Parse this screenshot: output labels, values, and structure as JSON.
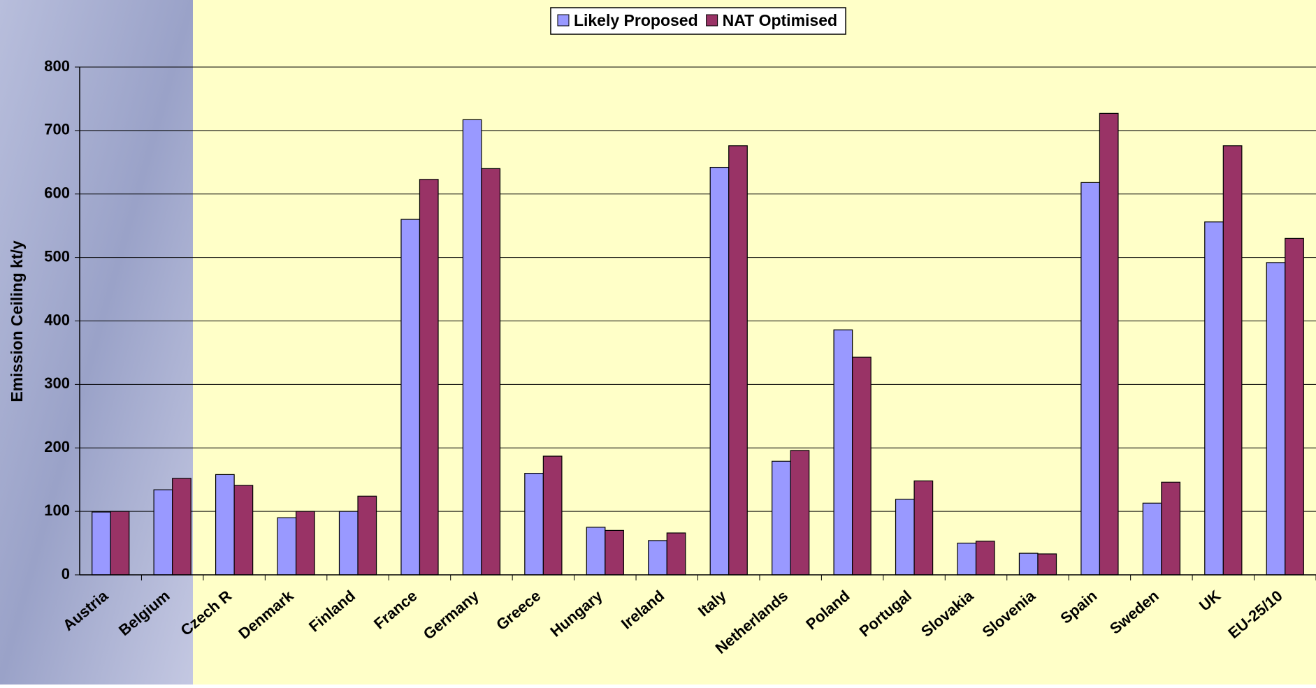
{
  "chart_data": {
    "type": "bar",
    "y_label": "Emission Ceiling kt/y",
    "categories": [
      "Austria",
      "Belgium",
      "Czech R",
      "Denmark",
      "Finland",
      "France",
      "Germany",
      "Greece",
      "Hungary",
      "Ireland",
      "Italy",
      "Netherlands",
      "Poland",
      "Portugal",
      "Slovakia",
      "Slovenia",
      "Spain",
      "Sweden",
      "UK",
      "EU-25/10"
    ],
    "series": [
      {
        "name": "Likely Proposed",
        "color": "#9999ff",
        "values": [
          99,
          134,
          158,
          90,
          100,
          560,
          717,
          160,
          75,
          54,
          642,
          179,
          386,
          119,
          50,
          34,
          618,
          113,
          556,
          492
        ]
      },
      {
        "name": "NAT Optimised",
        "color": "#993366",
        "values": [
          100,
          152,
          141,
          100,
          124,
          623,
          640,
          187,
          70,
          66,
          676,
          196,
          343,
          148,
          53,
          33,
          727,
          146,
          676,
          530
        ]
      }
    ],
    "ylim": [
      0,
      800
    ],
    "yticks": [
      0,
      100,
      200,
      300,
      400,
      500,
      600,
      700,
      800
    ],
    "grid": true,
    "legend": "top"
  }
}
